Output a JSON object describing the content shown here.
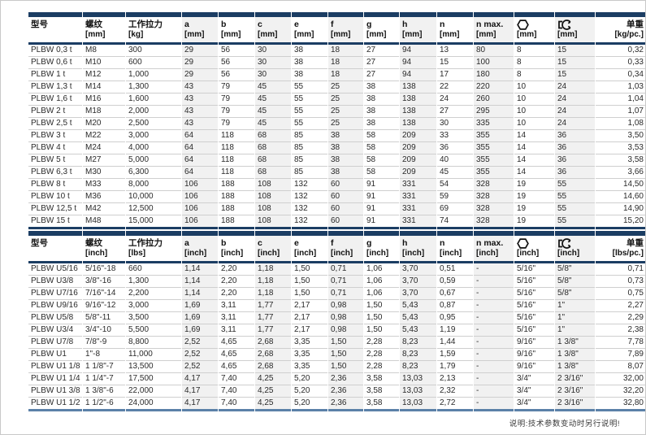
{
  "page": {
    "footer_note": "说明:技术参数变动时另行说明!"
  },
  "columns": {
    "model": "型号",
    "thread": "螺纹",
    "working_load": "工作拉力",
    "dims": [
      "a",
      "b",
      "c",
      "e",
      "f",
      "g",
      "h",
      "n",
      "n max."
    ],
    "hex_icon": "hexagon-icon",
    "wrench_icon": "wrench-icon",
    "unit_weight": "单重"
  },
  "colors": {
    "header_band_navy": "#1b3d63",
    "imperial_bottom_line": "#5b81a8",
    "column_stripe": "#f1f1f1",
    "row_divider": "#cfcfcf"
  },
  "tables": [
    {
      "id": "metric",
      "units": {
        "thread": "[mm]",
        "load": "[kg]",
        "dim": "[mm]",
        "weight": "[kg/pc.]"
      },
      "rows": [
        [
          "PLBW 0,3 t",
          "M8",
          "300",
          "29",
          "56",
          "30",
          "38",
          "18",
          "27",
          "94",
          "13",
          "80",
          "8",
          "15",
          "0,32"
        ],
        [
          "PLBW 0,6 t",
          "M10",
          "600",
          "29",
          "56",
          "30",
          "38",
          "18",
          "27",
          "94",
          "15",
          "100",
          "8",
          "15",
          "0,33"
        ],
        [
          "PLBW 1 t",
          "M12",
          "1,000",
          "29",
          "56",
          "30",
          "38",
          "18",
          "27",
          "94",
          "17",
          "180",
          "8",
          "15",
          "0,34"
        ],
        [
          "PLBW 1,3 t",
          "M14",
          "1,300",
          "43",
          "79",
          "45",
          "55",
          "25",
          "38",
          "138",
          "22",
          "220",
          "10",
          "24",
          "1,03"
        ],
        [
          "PLBW 1,6 t",
          "M16",
          "1,600",
          "43",
          "79",
          "45",
          "55",
          "25",
          "38",
          "138",
          "24",
          "260",
          "10",
          "24",
          "1,04"
        ],
        [
          "PLBW 2 t",
          "M18",
          "2,000",
          "43",
          "79",
          "45",
          "55",
          "25",
          "38",
          "138",
          "27",
          "295",
          "10",
          "24",
          "1,07"
        ],
        [
          "PLBW 2,5 t",
          "M20",
          "2,500",
          "43",
          "79",
          "45",
          "55",
          "25",
          "38",
          "138",
          "30",
          "335",
          "10",
          "24",
          "1,08"
        ],
        [
          "PLBW 3 t",
          "M22",
          "3,000",
          "64",
          "118",
          "68",
          "85",
          "38",
          "58",
          "209",
          "33",
          "355",
          "14",
          "36",
          "3,50"
        ],
        [
          "PLBW 4 t",
          "M24",
          "4,000",
          "64",
          "118",
          "68",
          "85",
          "38",
          "58",
          "209",
          "36",
          "355",
          "14",
          "36",
          "3,53"
        ],
        [
          "PLBW 5 t",
          "M27",
          "5,000",
          "64",
          "118",
          "68",
          "85",
          "38",
          "58",
          "209",
          "40",
          "355",
          "14",
          "36",
          "3,58"
        ],
        [
          "PLBW 6,3 t",
          "M30",
          "6,300",
          "64",
          "118",
          "68",
          "85",
          "38",
          "58",
          "209",
          "45",
          "355",
          "14",
          "36",
          "3,66"
        ],
        [
          "PLBW 8 t",
          "M33",
          "8,000",
          "106",
          "188",
          "108",
          "132",
          "60",
          "91",
          "331",
          "54",
          "328",
          "19",
          "55",
          "14,50"
        ],
        [
          "PLBW 10 t",
          "M36",
          "10,000",
          "106",
          "188",
          "108",
          "132",
          "60",
          "91",
          "331",
          "59",
          "328",
          "19",
          "55",
          "14,60"
        ],
        [
          "PLBW 12,5 t",
          "M42",
          "12,500",
          "106",
          "188",
          "108",
          "132",
          "60",
          "91",
          "331",
          "69",
          "328",
          "19",
          "55",
          "14,90"
        ],
        [
          "PLBW 15 t",
          "M48",
          "15,000",
          "106",
          "188",
          "108",
          "132",
          "60",
          "91",
          "331",
          "74",
          "328",
          "19",
          "55",
          "15,20"
        ]
      ]
    },
    {
      "id": "imperial",
      "units": {
        "thread": "[inch]",
        "load": "[lbs]",
        "dim": "[inch]",
        "weight": "[lbs/pc.]"
      },
      "rows": [
        [
          "PLBW U5/16",
          "5/16\"-18",
          "660",
          "1,14",
          "2,20",
          "1,18",
          "1,50",
          "0,71",
          "1,06",
          "3,70",
          "0,51",
          "-",
          "5/16\"",
          "5/8\"",
          "0,71"
        ],
        [
          "PLBW U3/8",
          "3/8\"-16",
          "1,300",
          "1,14",
          "2,20",
          "1,18",
          "1,50",
          "0,71",
          "1,06",
          "3,70",
          "0,59",
          "-",
          "5/16\"",
          "5/8\"",
          "0,73"
        ],
        [
          "PLBW U7/16",
          "7/16\"-14",
          "2,200",
          "1,14",
          "2,20",
          "1,18",
          "1,50",
          "0,71",
          "1,06",
          "3,70",
          "0,67",
          "-",
          "5/16\"",
          "5/8\"",
          "0,75"
        ],
        [
          "PLBW U9/16",
          "9/16\"-12",
          "3,000",
          "1,69",
          "3,11",
          "1,77",
          "2,17",
          "0,98",
          "1,50",
          "5,43",
          "0,87",
          "-",
          "5/16\"",
          "1\"",
          "2,27"
        ],
        [
          "PLBW U5/8",
          "5/8\"-11",
          "3,500",
          "1,69",
          "3,11",
          "1,77",
          "2,17",
          "0,98",
          "1,50",
          "5,43",
          "0,95",
          "-",
          "5/16\"",
          "1\"",
          "2,29"
        ],
        [
          "PLBW U3/4",
          "3/4\"-10",
          "5,500",
          "1,69",
          "3,11",
          "1,77",
          "2,17",
          "0,98",
          "1,50",
          "5,43",
          "1,19",
          "-",
          "5/16\"",
          "1\"",
          "2,38"
        ],
        [
          "PLBW U7/8",
          "7/8\"-9",
          "8,800",
          "2,52",
          "4,65",
          "2,68",
          "3,35",
          "1,50",
          "2,28",
          "8,23",
          "1,44",
          "-",
          "9/16\"",
          "1 3/8\"",
          "7,78"
        ],
        [
          "PLBW U1",
          "1\"-8",
          "11,000",
          "2,52",
          "4,65",
          "2,68",
          "3,35",
          "1,50",
          "2,28",
          "8,23",
          "1,59",
          "-",
          "9/16\"",
          "1 3/8\"",
          "7,89"
        ],
        [
          "PLBW U1 1/8",
          "1 1/8\"-7",
          "13,500",
          "2,52",
          "4,65",
          "2,68",
          "3,35",
          "1,50",
          "2,28",
          "8,23",
          "1,79",
          "-",
          "9/16\"",
          "1 3/8\"",
          "8,07"
        ],
        [
          "PLBW U1 1/4",
          "1 1/4\"-7",
          "17,500",
          "4,17",
          "7,40",
          "4,25",
          "5,20",
          "2,36",
          "3,58",
          "13,03",
          "2,13",
          "-",
          "3/4\"",
          "2 3/16\"",
          "32,00"
        ],
        [
          "PLBW U1 3/8",
          "1 3/8\"-6",
          "22,000",
          "4,17",
          "7,40",
          "4,25",
          "5,20",
          "2,36",
          "3,58",
          "13,03",
          "2,32",
          "-",
          "3/4\"",
          "2 3/16\"",
          "32,20"
        ],
        [
          "PLBW U1 1/2",
          "1 1/2\"-6",
          "24,000",
          "4,17",
          "7,40",
          "4,25",
          "5,20",
          "2,36",
          "3,58",
          "13,03",
          "2,72",
          "-",
          "3/4\"",
          "2 3/16\"",
          "32,80"
        ]
      ]
    }
  ]
}
